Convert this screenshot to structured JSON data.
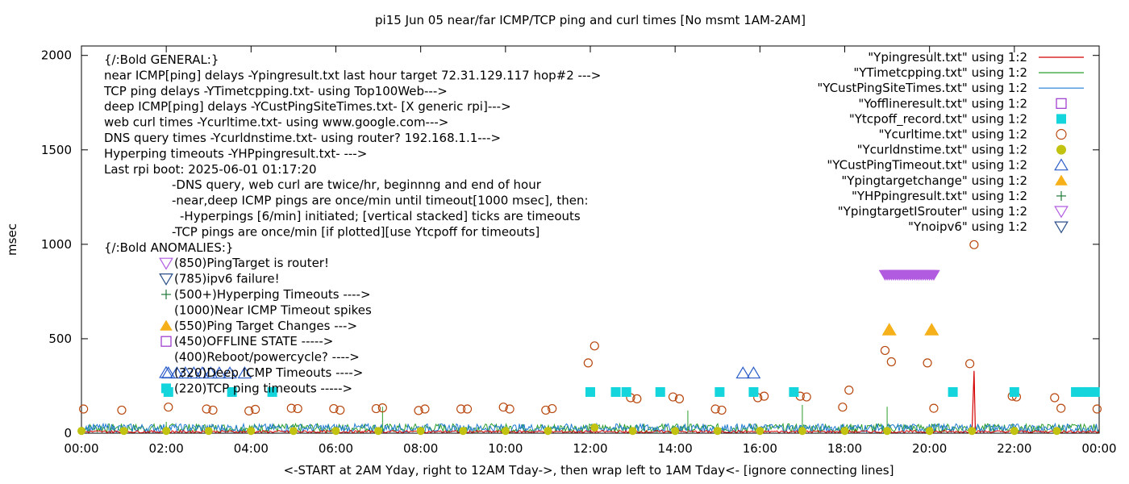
{
  "chart_data": {
    "type": "scatter",
    "title": "pi15 Jun 05  near/far ICMP/TCP ping and curl times [No msmt 1AM-2AM]",
    "xlabel": "<-START at 2AM Yday, right to 12AM Tday->, then wrap left to 1AM Tday<- [ignore connecting lines]",
    "ylabel": "msec",
    "xlim": [
      0,
      24
    ],
    "ylim": [
      0,
      2050
    ],
    "x_ticks": [
      "00:00",
      "02:00",
      "04:00",
      "06:00",
      "08:00",
      "10:00",
      "12:00",
      "14:00",
      "16:00",
      "18:00",
      "20:00",
      "22:00",
      "00:00"
    ],
    "y_ticks": [
      "0",
      "500",
      "1000",
      "1500",
      "2000"
    ],
    "y_tick_values": [
      0,
      500,
      1000,
      1500,
      2000
    ],
    "legend_position": "top-right",
    "legend": [
      {
        "label": "\"Ypingresult.txt\" using 1:2",
        "marker": "line",
        "color": "#d40000"
      },
      {
        "label": "\"YTimetcpping.txt\" using 1:2",
        "marker": "line",
        "color": "#2a9d2a"
      },
      {
        "label": "\"YCustPingSiteTimes.txt\" using 1:2",
        "marker": "line",
        "color": "#1f7bd0"
      },
      {
        "label": "\"Yofflineresult.txt\" using 1:2",
        "marker": "open-square",
        "color": "#9a33cc"
      },
      {
        "label": "\"Ytcpoff_record.txt\" using 1:2",
        "marker": "filled-square",
        "color": "#14d4dc"
      },
      {
        "label": "\"Ycurltime.txt\" using 1:2",
        "marker": "open-circle",
        "color": "#b8480f"
      },
      {
        "label": "\"Ycurldnstime.txt\" using 1:2",
        "marker": "filled-circle",
        "color": "#c2c210"
      },
      {
        "label": "\"YCustPingTimeout.txt\" using 1:2",
        "marker": "open-triangle-up",
        "color": "#2a5cc8"
      },
      {
        "label": "\"Ypingtargetchange\" using 1:2",
        "marker": "filled-triangle-up",
        "color": "#f5b01a"
      },
      {
        "label": "\"YHPpingresult.txt\" using 1:2",
        "marker": "plus",
        "color": "#1e7a3a"
      },
      {
        "label": "\"YpingtargetISrouter\" using 1:2",
        "marker": "open-triangle-down",
        "color": "#b15ce0"
      },
      {
        "label": "\"Ynoipv6\" using 1:2",
        "marker": "open-triangle-down",
        "color": "#2a4f88"
      }
    ],
    "notes": [
      "{/:Bold GENERAL:}",
      "near ICMP[ping] delays -Ypingresult.txt last hour target 72.31.129.117 hop#2 --->",
      "TCP ping delays -YTimetcpping.txt- using Top100Web--->",
      "deep ICMP[ping] delays -YCustPingSiteTimes.txt- [X generic rpi]--->",
      "web curl times -Ycurltime.txt- using www.google.com--->",
      "DNS query times -Ycurldnstime.txt- using router? 192.168.1.1--->",
      "Hyperping timeouts -YHPpingresult.txt- --->",
      "Last rpi boot: 2025-06-01 01:17:20",
      "-DNS query, web curl are twice/hr, beginnng and end of hour",
      "-near,deep ICMP pings are once/min until timeout[1000 msec], then:",
      "-Hyperpings [6/min] initiated; [vertical stacked] ticks are timeouts",
      "-TCP pings are once/min [if plotted][use Ytcpoff for timeouts]",
      "{/:Bold ANOMALIES:}"
    ],
    "anomalies": [
      {
        "text": "(850)PingTarget is router!",
        "marker": "open-triangle-down",
        "color": "#b15ce0"
      },
      {
        "text": "(785)ipv6 failure!",
        "marker": "open-triangle-down",
        "color": "#2a4f88"
      },
      {
        "text": "(500+)Hyperping Timeouts ---->",
        "marker": "plus",
        "color": "#1e7a3a"
      },
      {
        "text": "(1000)Near ICMP Timeout spikes",
        "marker": "none",
        "color": "#d40000"
      },
      {
        "text": "(550)Ping Target Changes --->",
        "marker": "filled-triangle-up",
        "color": "#f5b01a"
      },
      {
        "text": "(450)OFFLINE STATE ----->",
        "marker": "open-square",
        "color": "#9a33cc"
      },
      {
        "text": "(400)Reboot/powercycle? ---->",
        "marker": "none",
        "color": "#000000"
      },
      {
        "text": "(320)Deep ICMP Timeouts ---->",
        "marker": "open-triangle-up",
        "color": "#2a5cc8"
      },
      {
        "text": "(220)TCP ping timeouts ----->",
        "marker": "filled-square",
        "color": "#14d4dc"
      }
    ],
    "series": {
      "curl_times": [
        [
          0.05,
          128
        ],
        [
          0.95,
          122
        ],
        [
          2.05,
          138
        ],
        [
          2.95,
          128
        ],
        [
          3.1,
          122
        ],
        [
          3.95,
          118
        ],
        [
          4.1,
          126
        ],
        [
          4.95,
          132
        ],
        [
          5.1,
          130
        ],
        [
          5.95,
          130
        ],
        [
          6.1,
          122
        ],
        [
          6.95,
          130
        ],
        [
          7.1,
          134
        ],
        [
          7.95,
          120
        ],
        [
          8.1,
          128
        ],
        [
          8.95,
          128
        ],
        [
          9.1,
          128
        ],
        [
          9.95,
          138
        ],
        [
          10.1,
          128
        ],
        [
          10.95,
          122
        ],
        [
          11.1,
          130
        ],
        [
          11.95,
          372
        ],
        [
          12.1,
          462
        ],
        [
          12.95,
          188
        ],
        [
          13.1,
          182
        ],
        [
          13.95,
          192
        ],
        [
          14.1,
          182
        ],
        [
          14.95,
          128
        ],
        [
          15.1,
          122
        ],
        [
          15.95,
          188
        ],
        [
          16.1,
          196
        ],
        [
          16.95,
          196
        ],
        [
          17.1,
          192
        ],
        [
          17.95,
          138
        ],
        [
          18.1,
          228
        ],
        [
          18.95,
          438
        ],
        [
          19.1,
          378
        ],
        [
          19.95,
          372
        ],
        [
          20.1,
          132
        ],
        [
          20.95,
          368
        ],
        [
          21.05,
          998
        ],
        [
          21.95,
          196
        ],
        [
          22.05,
          192
        ],
        [
          22.95,
          188
        ],
        [
          23.1,
          132
        ],
        [
          23.95,
          128
        ]
      ],
      "tcp_timeouts": [
        [
          2.05,
          218
        ],
        [
          3.55,
          218
        ],
        [
          4.5,
          218
        ],
        [
          12.0,
          218
        ],
        [
          12.6,
          218
        ],
        [
          12.85,
          218
        ],
        [
          13.65,
          218
        ],
        [
          15.05,
          218
        ],
        [
          15.85,
          218
        ],
        [
          16.8,
          218
        ],
        [
          20.55,
          218
        ],
        [
          22.0,
          218
        ],
        [
          23.45,
          218
        ],
        [
          23.6,
          218
        ],
        [
          23.75,
          218
        ],
        [
          23.9,
          218
        ]
      ],
      "deep_icmp_timeouts": [
        [
          2.05,
          318
        ],
        [
          2.25,
          318
        ],
        [
          2.45,
          318
        ],
        [
          2.65,
          318
        ],
        [
          2.85,
          318
        ],
        [
          3.05,
          318
        ],
        [
          3.25,
          318
        ],
        [
          3.5,
          318
        ],
        [
          3.85,
          318
        ],
        [
          15.6,
          318
        ],
        [
          15.85,
          318
        ]
      ],
      "ping_target_changes": [
        [
          19.05,
          548
        ],
        [
          20.05,
          548
        ]
      ],
      "ping_target_is_router": [
        [
          18.95,
          838
        ],
        [
          19.25,
          838
        ],
        [
          19.55,
          838
        ],
        [
          19.85,
          838
        ],
        [
          20.1,
          838
        ]
      ],
      "dns_times": [
        [
          0.0,
          12
        ],
        [
          1.0,
          12
        ],
        [
          2.0,
          12
        ],
        [
          3.0,
          12
        ],
        [
          4.0,
          12
        ],
        [
          5.0,
          12
        ],
        [
          6.0,
          12
        ],
        [
          7.0,
          12
        ],
        [
          8.0,
          12
        ],
        [
          9.0,
          12
        ],
        [
          10.0,
          12
        ],
        [
          11.0,
          12
        ],
        [
          12.1,
          30
        ],
        [
          13.0,
          12
        ],
        [
          14.0,
          12
        ],
        [
          15.0,
          12
        ],
        [
          16.0,
          12
        ],
        [
          17.0,
          12
        ],
        [
          18.0,
          12
        ],
        [
          19.0,
          12
        ],
        [
          20.0,
          12
        ],
        [
          21.0,
          12
        ],
        [
          22.0,
          12
        ],
        [
          23.0,
          12
        ]
      ]
    }
  }
}
